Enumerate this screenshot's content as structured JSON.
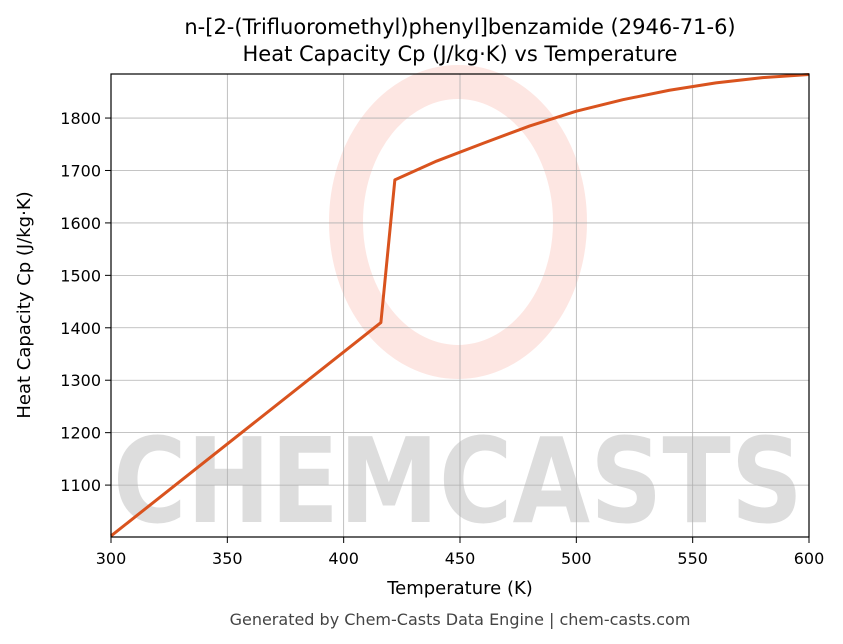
{
  "chart_data": {
    "type": "line",
    "title": "n-[2-(Trifluoromethyl)phenyl]benzamide (2946-71-6)",
    "subtitle": "Heat Capacity Cp (J/kg·K) vs Temperature",
    "x_label": "Temperature (K)",
    "y_label": "Heat Capacity Cp (J/kg·K)",
    "watermark": "CHEMCASTS",
    "footer": "Generated by Chem-Casts Data Engine | chem-casts.com",
    "x": [
      300,
      416,
      422,
      440,
      460,
      480,
      500,
      520,
      540,
      560,
      580,
      600
    ],
    "series": [
      {
        "name": "Cp",
        "color": "#d9531e",
        "values": [
          1003,
          1410,
          1682,
          1718,
          1752,
          1785,
          1813,
          1835,
          1853,
          1867,
          1877,
          1883
        ]
      }
    ],
    "xlim": [
      300,
      600
    ],
    "xticks": [
      300,
      350,
      400,
      450,
      500,
      550,
      600
    ],
    "ylim": [
      1001,
      1884
    ],
    "yticks": [
      1100,
      1200,
      1300,
      1400,
      1500,
      1600,
      1700,
      1800
    ],
    "grid": true
  }
}
